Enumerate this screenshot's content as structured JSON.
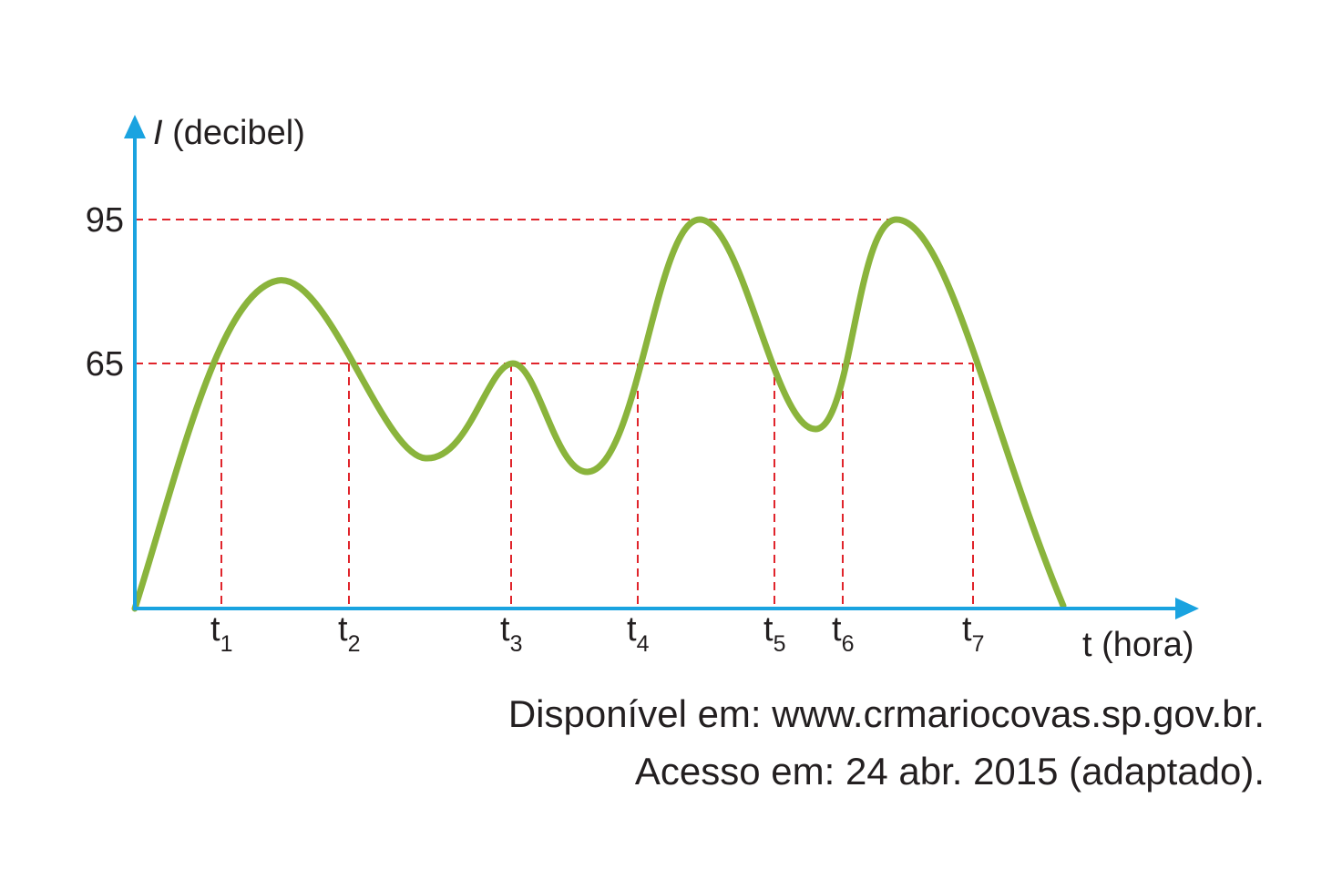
{
  "y_axis": {
    "symbol": "I",
    "unit": "(decibel)",
    "levels": [
      "95",
      "65"
    ]
  },
  "x_axis": {
    "label": "t (hora)",
    "markers": [
      {
        "base": "t",
        "sub": "1"
      },
      {
        "base": "t",
        "sub": "2"
      },
      {
        "base": "t",
        "sub": "3"
      },
      {
        "base": "t",
        "sub": "4"
      },
      {
        "base": "t",
        "sub": "5"
      },
      {
        "base": "t",
        "sub": "6"
      },
      {
        "base": "t",
        "sub": "7"
      }
    ]
  },
  "source": [
    "Disponível em: www.crmariocovas.sp.gov.br.",
    "Acesso em: 24 abr. 2015 (adaptado)."
  ]
}
